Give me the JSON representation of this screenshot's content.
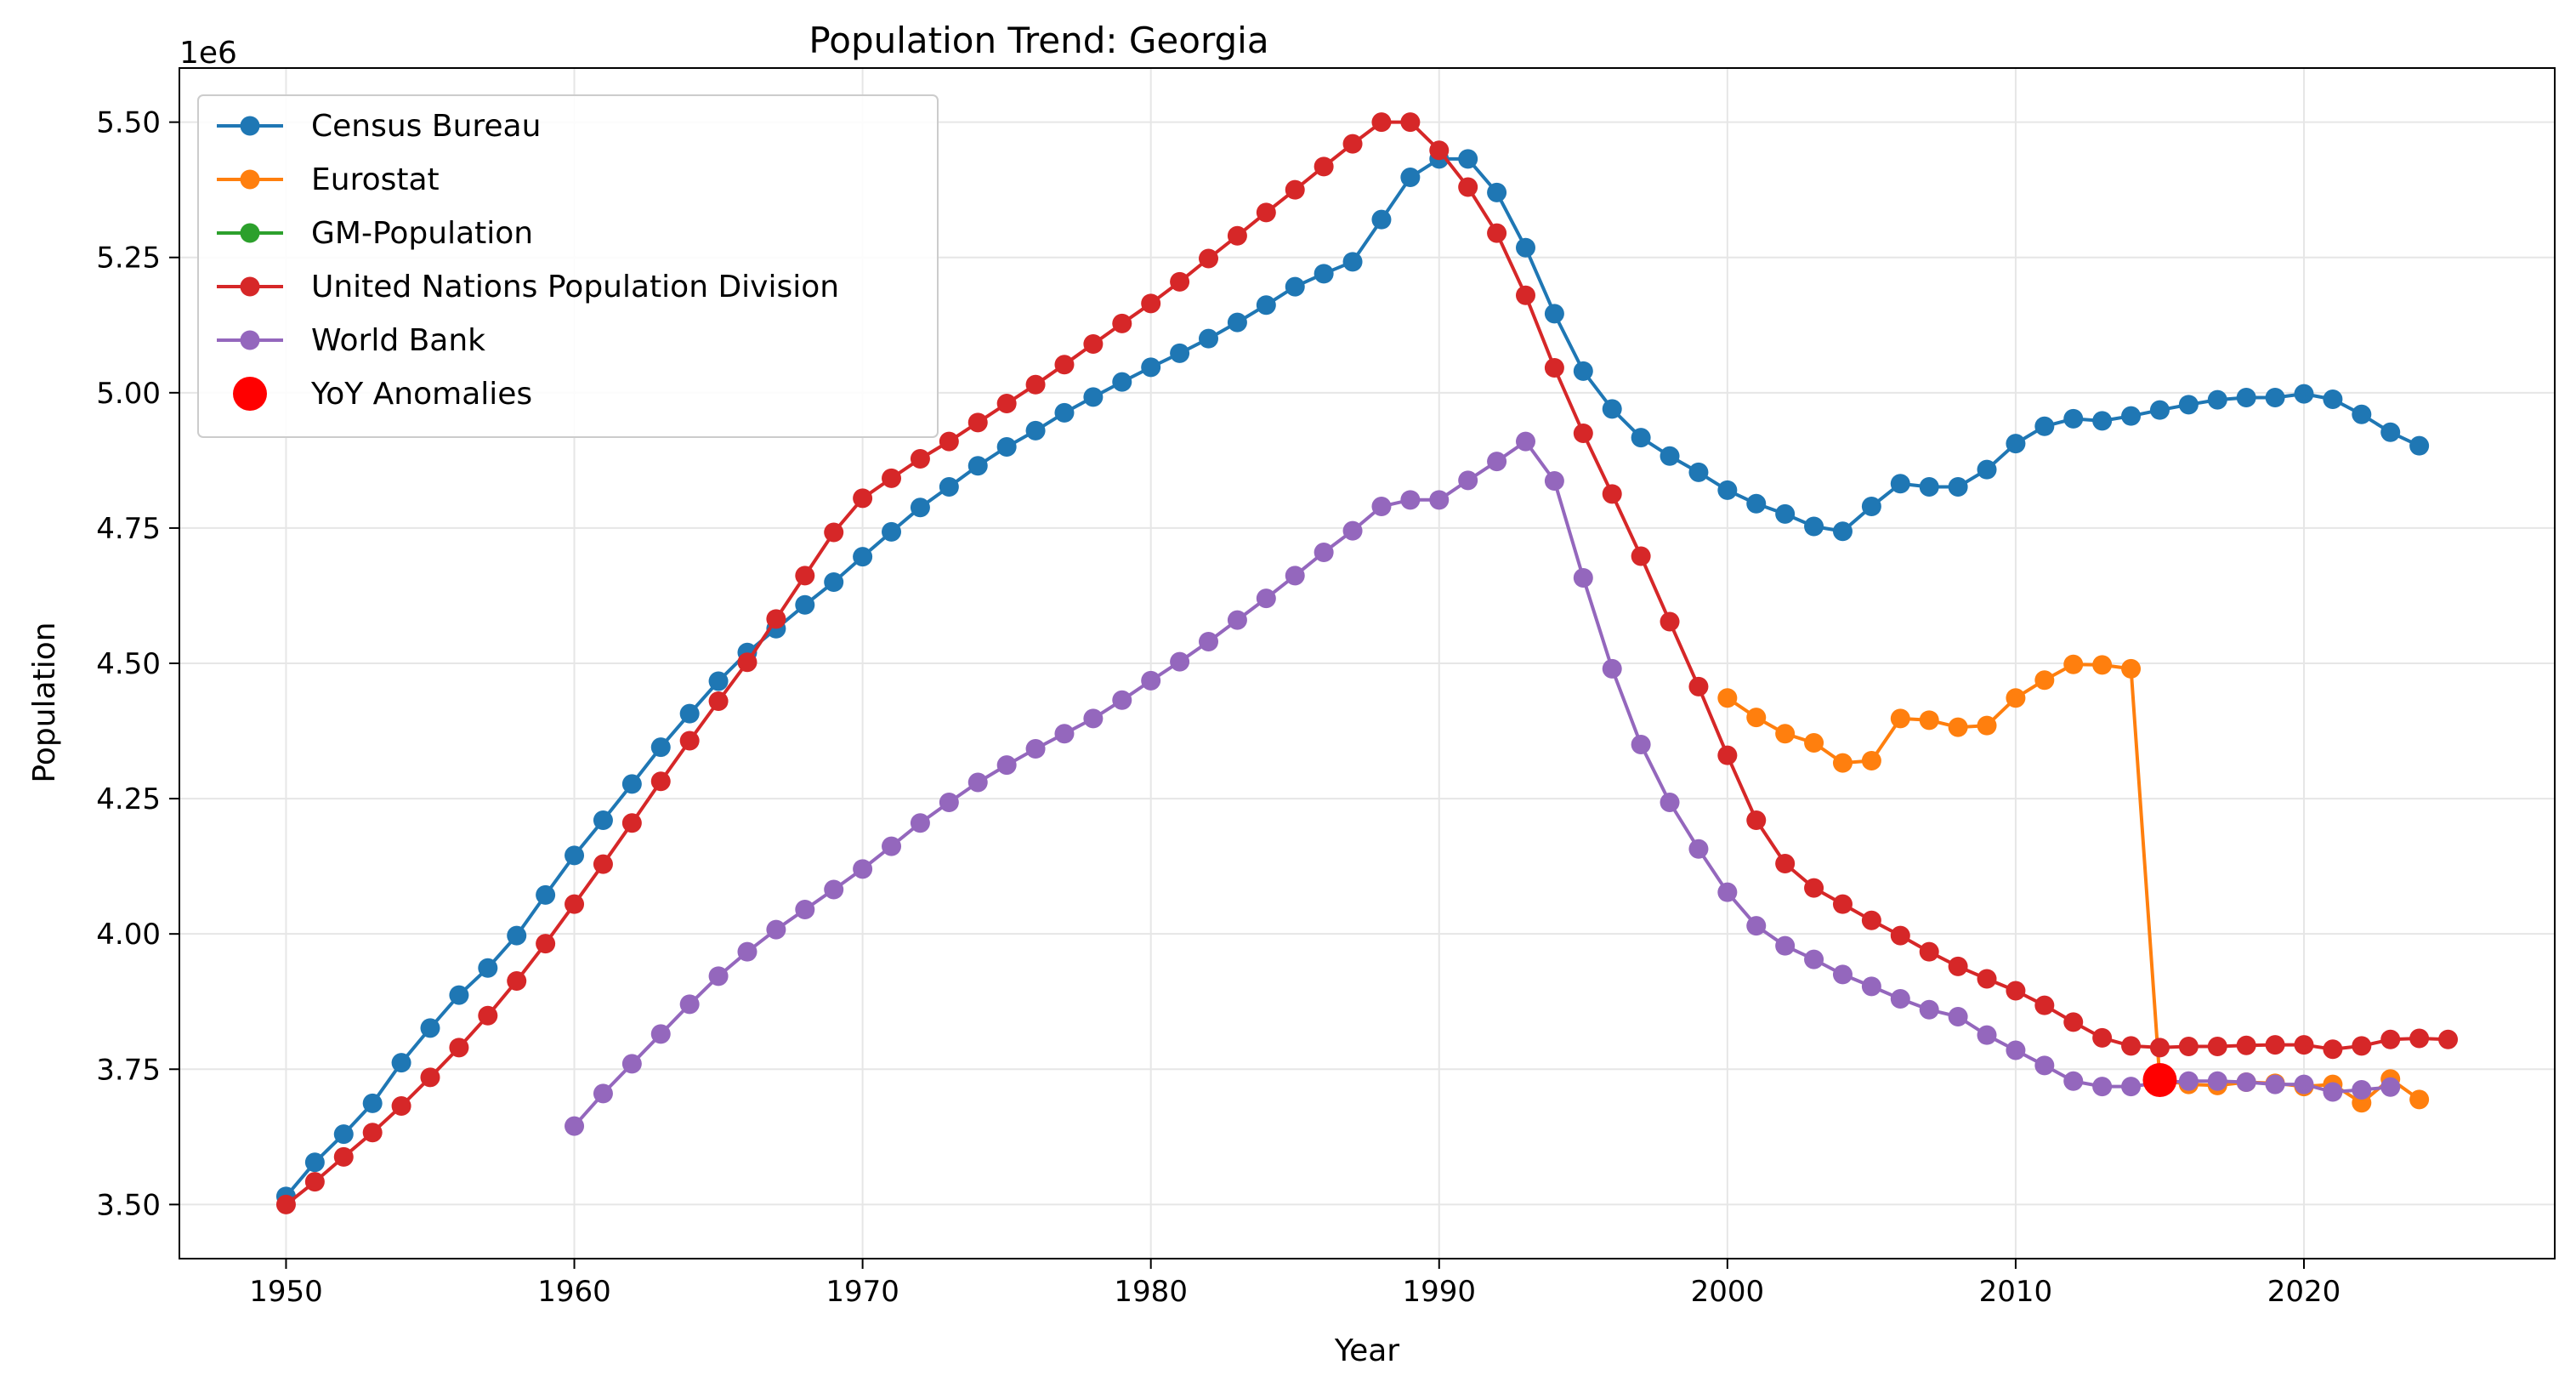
{
  "chart_data": {
    "type": "line",
    "title": "Population Trend: Georgia",
    "xlabel": "Year",
    "ylabel": "Population",
    "y_offset_label": "1e6",
    "xlim": [
      1946.3,
      2028.7
    ],
    "ylim": [
      3.4,
      5.6
    ],
    "x_ticks": [
      1950,
      1960,
      1970,
      1980,
      1990,
      2000,
      2010,
      2020
    ],
    "y_ticks": [
      3.5,
      3.75,
      4.0,
      4.25,
      4.5,
      4.75,
      5.0,
      5.25,
      5.5
    ],
    "y_tick_labels": [
      "3.50",
      "3.75",
      "4.00",
      "4.25",
      "4.50",
      "4.75",
      "5.00",
      "5.25",
      "5.50"
    ],
    "grid": true,
    "legend_position": "upper-left",
    "series": [
      {
        "name": "Census Bureau",
        "color": "#1f77b4",
        "x": [
          1950,
          1951,
          1952,
          1953,
          1954,
          1955,
          1956,
          1957,
          1958,
          1959,
          1960,
          1961,
          1962,
          1963,
          1964,
          1965,
          1966,
          1967,
          1968,
          1969,
          1970,
          1971,
          1972,
          1973,
          1974,
          1975,
          1976,
          1977,
          1978,
          1979,
          1980,
          1981,
          1982,
          1983,
          1984,
          1985,
          1986,
          1987,
          1988,
          1989,
          1990,
          1991,
          1992,
          1993,
          1994,
          1995,
          1996,
          1997,
          1998,
          1999,
          2000,
          2001,
          2002,
          2003,
          2004,
          2005,
          2006,
          2007,
          2008,
          2009,
          2010,
          2011,
          2012,
          2013,
          2014,
          2015,
          2016,
          2017,
          2018,
          2019,
          2020,
          2021,
          2022,
          2023,
          2024
        ],
        "y": [
          3.515,
          3.578,
          3.63,
          3.687,
          3.762,
          3.826,
          3.887,
          3.937,
          3.997,
          4.072,
          4.145,
          4.21,
          4.277,
          4.345,
          4.407,
          4.467,
          4.52,
          4.564,
          4.608,
          4.65,
          4.697,
          4.743,
          4.788,
          4.826,
          4.865,
          4.9,
          4.93,
          4.963,
          4.992,
          5.02,
          5.047,
          5.073,
          5.1,
          5.13,
          5.162,
          5.196,
          5.22,
          5.242,
          5.32,
          5.398,
          5.432,
          5.432,
          5.37,
          5.268,
          5.146,
          5.04,
          4.97,
          4.917,
          4.883,
          4.853,
          4.82,
          4.795,
          4.776,
          4.753,
          4.744,
          4.79,
          4.832,
          4.826,
          4.826,
          4.858,
          4.906,
          4.938,
          4.952,
          4.948,
          4.957,
          4.968,
          4.978,
          4.987,
          4.991,
          4.991,
          4.998,
          4.988,
          4.96,
          4.927,
          4.902
        ]
      },
      {
        "name": "Eurostat",
        "color": "#ff7f0e",
        "x": [
          2000,
          2001,
          2002,
          2003,
          2004,
          2005,
          2006,
          2007,
          2008,
          2009,
          2010,
          2011,
          2012,
          2013,
          2014,
          2015,
          2016,
          2017,
          2018,
          2019,
          2020,
          2021,
          2022,
          2023,
          2024
        ],
        "y": [
          4.436,
          4.4,
          4.37,
          4.353,
          4.316,
          4.32,
          4.398,
          4.395,
          4.382,
          4.385,
          4.436,
          4.469,
          4.498,
          4.497,
          4.49,
          3.73,
          3.722,
          3.72,
          3.726,
          3.724,
          3.718,
          3.722,
          3.688,
          3.732,
          3.694
        ]
      },
      {
        "name": "GM-Population",
        "color": "#2ca02c",
        "x": [],
        "y": []
      },
      {
        "name": "United Nations Population Division",
        "color": "#d62728",
        "x": [
          1950,
          1951,
          1952,
          1953,
          1954,
          1955,
          1956,
          1957,
          1958,
          1959,
          1960,
          1961,
          1962,
          1963,
          1964,
          1965,
          1966,
          1967,
          1968,
          1969,
          1970,
          1971,
          1972,
          1973,
          1974,
          1975,
          1976,
          1977,
          1978,
          1979,
          1980,
          1981,
          1982,
          1983,
          1984,
          1985,
          1986,
          1987,
          1988,
          1989,
          1990,
          1991,
          1992,
          1993,
          1994,
          1995,
          1996,
          1997,
          1998,
          1999,
          2000,
          2001,
          2002,
          2003,
          2004,
          2005,
          2006,
          2007,
          2008,
          2009,
          2010,
          2011,
          2012,
          2013,
          2014,
          2015,
          2016,
          2017,
          2018,
          2019,
          2020,
          2021,
          2022,
          2023,
          2024,
          2025
        ],
        "y": [
          3.5,
          3.542,
          3.588,
          3.633,
          3.682,
          3.735,
          3.79,
          3.849,
          3.913,
          3.982,
          4.055,
          4.129,
          4.205,
          4.282,
          4.357,
          4.43,
          4.502,
          4.582,
          4.662,
          4.742,
          4.805,
          4.842,
          4.878,
          4.91,
          4.945,
          4.98,
          5.015,
          5.052,
          5.09,
          5.128,
          5.165,
          5.205,
          5.248,
          5.29,
          5.333,
          5.375,
          5.418,
          5.46,
          5.5,
          5.5,
          5.448,
          5.38,
          5.295,
          5.18,
          5.046,
          4.925,
          4.813,
          4.698,
          4.577,
          4.457,
          4.33,
          4.21,
          4.13,
          4.085,
          4.055,
          4.025,
          3.997,
          3.967,
          3.94,
          3.917,
          3.895,
          3.868,
          3.837,
          3.808,
          3.793,
          3.79,
          3.792,
          3.792,
          3.794,
          3.795,
          3.795,
          3.787,
          3.793,
          3.805,
          3.807,
          3.805
        ]
      },
      {
        "name": "World Bank",
        "color": "#9467bd",
        "x": [
          1960,
          1961,
          1962,
          1963,
          1964,
          1965,
          1966,
          1967,
          1968,
          1969,
          1970,
          1971,
          1972,
          1973,
          1974,
          1975,
          1976,
          1977,
          1978,
          1979,
          1980,
          1981,
          1982,
          1983,
          1984,
          1985,
          1986,
          1987,
          1988,
          1989,
          1990,
          1991,
          1992,
          1993,
          1994,
          1995,
          1996,
          1997,
          1998,
          1999,
          2000,
          2001,
          2002,
          2003,
          2004,
          2005,
          2006,
          2007,
          2008,
          2009,
          2010,
          2011,
          2012,
          2013,
          2014,
          2015,
          2016,
          2017,
          2018,
          2019,
          2020,
          2021,
          2022,
          2023
        ],
        "y": [
          3.645,
          3.705,
          3.76,
          3.815,
          3.87,
          3.922,
          3.967,
          4.008,
          4.045,
          4.082,
          4.12,
          4.162,
          4.205,
          4.243,
          4.28,
          4.312,
          4.342,
          4.37,
          4.398,
          4.432,
          4.468,
          4.503,
          4.54,
          4.58,
          4.62,
          4.662,
          4.705,
          4.745,
          4.79,
          4.802,
          4.802,
          4.838,
          4.873,
          4.91,
          4.837,
          4.658,
          4.49,
          4.35,
          4.243,
          4.157,
          4.077,
          4.015,
          3.978,
          3.953,
          3.925,
          3.903,
          3.88,
          3.86,
          3.847,
          3.813,
          3.785,
          3.757,
          3.728,
          3.718,
          3.718,
          3.725,
          3.728,
          3.728,
          3.726,
          3.722,
          3.722,
          3.708,
          3.712,
          3.717
        ]
      }
    ],
    "anomalies": {
      "name": "YoY Anomalies",
      "color": "#ff0000",
      "points": [
        {
          "x": 2015,
          "y": 3.73
        }
      ]
    }
  }
}
